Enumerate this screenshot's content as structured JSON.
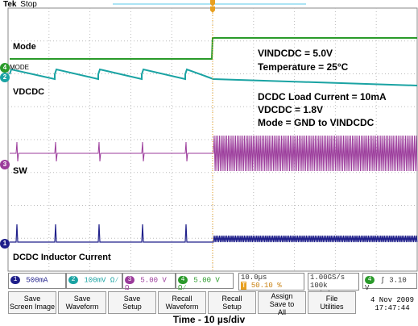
{
  "header": {
    "brand": "Tek",
    "state": "Stop"
  },
  "channels": {
    "ch1": {
      "label": "DCDC Inductor Current",
      "scale": "500mA",
      "color": "#1f1f8a"
    },
    "ch2": {
      "label": "VDCDC",
      "scale": "100mV",
      "color": "#1aa3a3"
    },
    "ch3": {
      "label": "SW",
      "scale": "5.00 V",
      "color": "#9b3b9b"
    },
    "ch4": {
      "label": "Mode",
      "scale": "5.00 V",
      "color": "#2a9a2a",
      "marker_text": "MODE"
    }
  },
  "annotations": [
    "VINDCDC = 5.0V",
    "Temperature = 25°C",
    "DCDC Load Current = 10mA",
    "VDCDC = 1.8V",
    "Mode = GND to VINDCDC"
  ],
  "status": {
    "ch1_symbol": "1",
    "ch2_symbol": "2",
    "ch3_symbol": "3",
    "ch4_symbol": "4",
    "ch2_suffix": "Ω⁄",
    "ch3_suffix": "Ω",
    "ch4_suffix": "Ω⁄",
    "timebase": "10.0µs",
    "trigger_pos": "50.10 %",
    "sample_rate": "1.00GS/s",
    "record_length": "100k points",
    "trig_channel": "4",
    "trig_slope": "ʃ",
    "trig_level": "3.10 V"
  },
  "menu": [
    "Save\nScreen Image",
    "Save\nWaveform",
    "Save\nSetup",
    "Recall\nWaveform",
    "Recall\nSetup",
    "Assign\nSave to\nAll",
    "File\nUtilities"
  ],
  "date": "4 Nov 2009",
  "time": "17:47:44",
  "footer": "Time - 10 µs/div"
}
